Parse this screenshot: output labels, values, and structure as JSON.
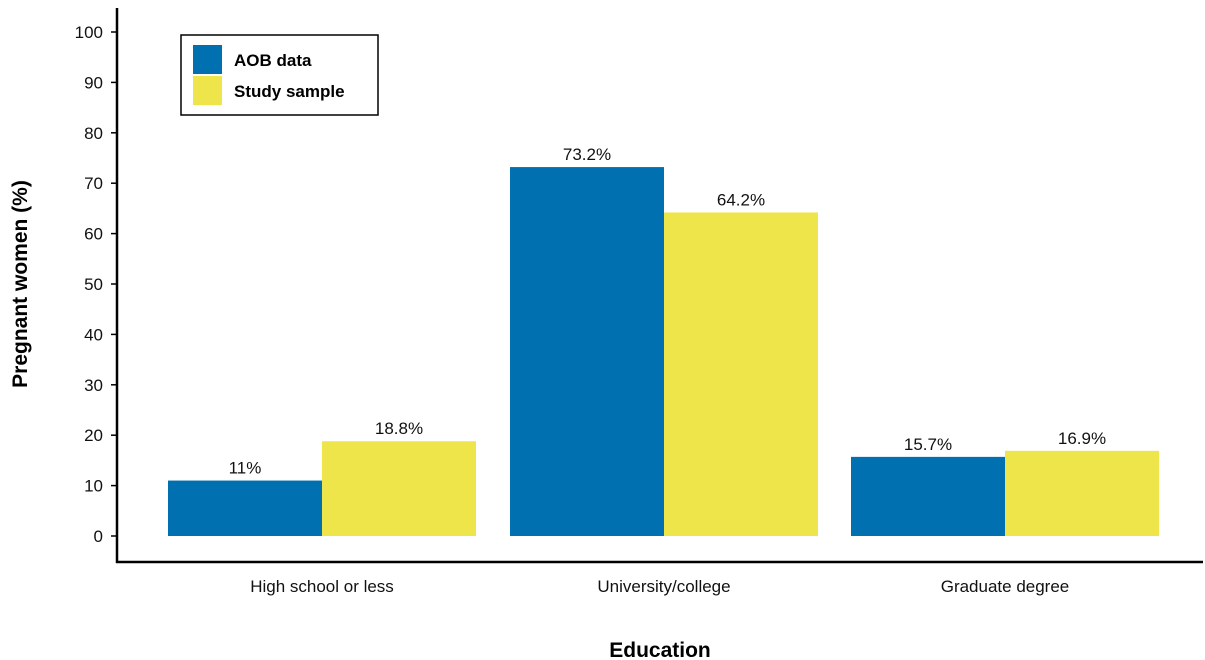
{
  "chart_data": {
    "type": "bar",
    "xlabel": "Education",
    "ylabel": "Pregnant women (%)",
    "ylim": [
      0,
      100
    ],
    "yticks": [
      0,
      10,
      20,
      30,
      40,
      50,
      60,
      70,
      80,
      90,
      100
    ],
    "categories": [
      "High school or less",
      "University/college",
      "Graduate degree"
    ],
    "series": [
      {
        "name": "AOB data",
        "color": "#0070b0",
        "values": [
          11,
          73.2,
          15.7
        ],
        "labels": [
          "11%",
          "73.2%",
          "15.7%"
        ]
      },
      {
        "name": "Study sample",
        "color": "#eee54a",
        "values": [
          18.8,
          64.2,
          16.9
        ],
        "labels": [
          "18.8%",
          "64.2%",
          "16.9%"
        ]
      }
    ],
    "legend": "top-left",
    "grid": false
  }
}
